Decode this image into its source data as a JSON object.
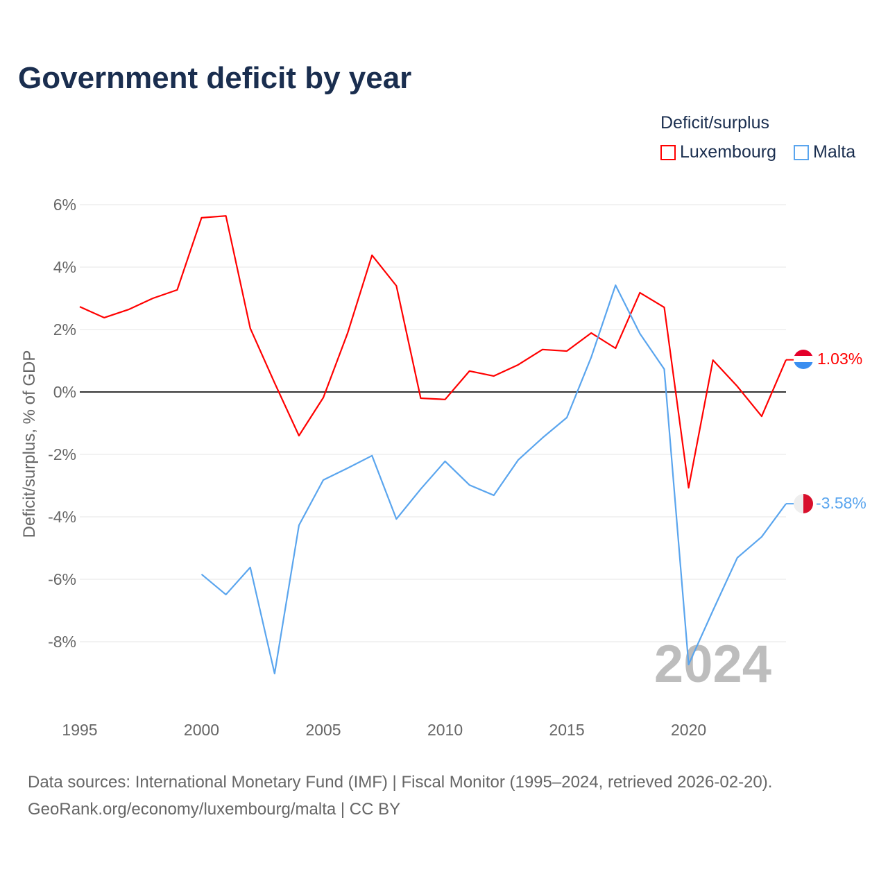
{
  "title": "Government deficit by year",
  "legend": {
    "title": "Deficit/surplus",
    "items": [
      {
        "name": "Luxembourg",
        "color": "#ff0000"
      },
      {
        "name": "Malta",
        "color": "#5aa5ee"
      }
    ]
  },
  "year_label": "2024",
  "footer": {
    "line1": "Data sources: International Monetary Fund (IMF) | Fiscal Monitor (1995–2024, retrieved 2026-02-20).",
    "line2": "GeoRank.org/economy/luxembourg/malta | CC BY"
  },
  "chart_data": {
    "type": "line",
    "title": "Government deficit by year",
    "xlabel": "",
    "ylabel": "Deficit/surplus, % of GDP",
    "xlim": [
      1995,
      2024
    ],
    "ylim": [
      -10,
      6.5
    ],
    "xticks": [
      1995,
      2000,
      2005,
      2010,
      2015,
      2020
    ],
    "yticks": [
      6,
      4,
      2,
      0,
      -2,
      -4,
      -6,
      -8
    ],
    "ytick_labels": [
      "6%",
      "4%",
      "2%",
      "0%",
      "-2%",
      "-4%",
      "-6%",
      "-8%"
    ],
    "grid": true,
    "legend_position": "top-right",
    "series": [
      {
        "name": "Luxembourg",
        "color": "#ff0000",
        "end_label": "1.03%",
        "x": [
          1995,
          1996,
          1997,
          1998,
          1999,
          2000,
          2001,
          2002,
          2003,
          2004,
          2005,
          2006,
          2007,
          2008,
          2009,
          2010,
          2011,
          2012,
          2013,
          2014,
          2015,
          2016,
          2017,
          2018,
          2019,
          2020,
          2021,
          2022,
          2023,
          2024
        ],
        "values": [
          2.73,
          2.38,
          2.64,
          3.0,
          3.27,
          5.58,
          5.64,
          2.04,
          0.29,
          -1.4,
          -0.18,
          1.89,
          4.38,
          3.4,
          -0.2,
          -0.24,
          0.67,
          0.51,
          0.87,
          1.36,
          1.31,
          1.89,
          1.4,
          3.18,
          2.71,
          -3.07,
          1.02,
          0.18,
          -0.78,
          1.03
        ]
      },
      {
        "name": "Malta",
        "color": "#5aa5ee",
        "end_label": "-3.58%",
        "x": [
          2000,
          2001,
          2002,
          2003,
          2004,
          2005,
          2006,
          2007,
          2008,
          2009,
          2010,
          2011,
          2012,
          2013,
          2014,
          2015,
          2016,
          2017,
          2018,
          2019,
          2020,
          2021,
          2022,
          2023,
          2024
        ],
        "values": [
          -5.84,
          -6.49,
          -5.62,
          -9.02,
          -4.27,
          -2.82,
          -2.44,
          -2.04,
          -4.07,
          -3.11,
          -2.22,
          -2.98,
          -3.31,
          -2.18,
          -1.47,
          -0.82,
          1.11,
          3.42,
          1.87,
          0.73,
          -8.73,
          -7.0,
          -5.31,
          -4.64,
          -3.58
        ]
      }
    ]
  }
}
